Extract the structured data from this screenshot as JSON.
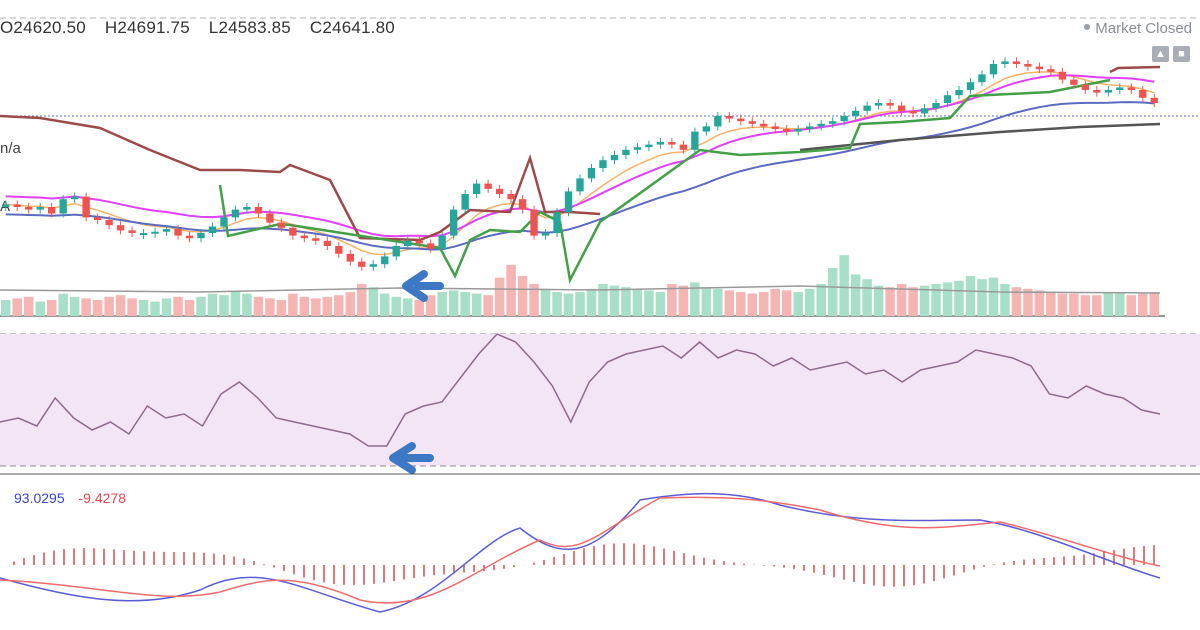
{
  "header": {
    "open": "O24620.50",
    "high": "H24691.75",
    "low": "L24583.85",
    "close": "C24641.80",
    "status": "Market Closed",
    "left_edge_text_1": "n/a",
    "left_edge_text_2": "A"
  },
  "macd_values": {
    "macd": "93.0295",
    "signal": "-9.4278"
  },
  "colors": {
    "up": "#26a69a",
    "down": "#ef5350",
    "ema_short": "#f7b267",
    "ema_mid": "#e040fb",
    "ema_blue": "#5c6bc0",
    "sma_long": "#555555",
    "supertrend_green": "#43a047",
    "supertrend_red": "#9c4a4a",
    "rsi_line": "#8e6b8e",
    "rsi_bg": "#f3e5f5",
    "macd_line": "#5b5bd6",
    "signal_line": "#ef6b6b",
    "arrow": "#3d78c4"
  },
  "chart_data": [
    {
      "type": "candlestick",
      "title": "",
      "ohlc": {
        "open": 24620.5,
        "high": 24691.75,
        "low": 24583.85,
        "close": 24641.8
      },
      "series": [
        {
          "kind": "candles",
          "close": [
            62,
            60,
            58,
            60,
            55,
            66,
            68,
            52,
            50,
            46,
            42,
            40,
            40,
            41,
            43,
            38,
            36,
            40,
            45,
            52,
            58,
            60,
            55,
            48,
            44,
            38,
            36,
            34,
            30,
            24,
            18,
            14,
            16,
            22,
            30,
            34,
            32,
            28,
            38,
            58,
            70,
            78,
            74,
            70,
            66,
            58,
            38,
            40,
            56,
            72,
            82,
            90,
            96,
            100,
            104,
            106,
            108,
            110,
            108,
            104,
            118,
            122,
            130,
            128,
            126,
            124,
            122,
            120,
            118,
            120,
            122,
            124,
            126,
            130,
            134,
            138,
            140,
            138,
            134,
            132,
            136,
            140,
            146,
            150,
            156,
            162,
            170,
            172,
            170,
            168,
            166,
            164,
            158,
            154,
            150,
            148,
            150,
            152,
            150,
            144,
            140
          ],
          "volume": [
            20,
            22,
            24,
            18,
            20,
            28,
            24,
            22,
            20,
            24,
            26,
            22,
            20,
            18,
            22,
            24,
            20,
            24,
            28,
            26,
            30,
            28,
            24,
            22,
            20,
            28,
            24,
            22,
            24,
            26,
            30,
            40,
            36,
            28,
            24,
            22,
            20,
            26,
            30,
            32,
            30,
            28,
            26,
            48,
            64,
            50,
            40,
            34,
            30,
            28,
            30,
            34,
            40,
            38,
            36,
            34,
            32,
            30,
            40,
            38,
            42,
            36,
            34,
            32,
            30,
            28,
            30,
            34,
            32,
            30,
            34,
            40,
            60,
            76,
            52,
            46,
            38,
            36,
            40,
            36,
            38,
            40,
            42,
            44,
            50,
            46,
            48,
            40,
            36,
            34,
            32,
            30,
            28,
            28,
            26,
            26,
            30,
            28,
            26,
            28,
            30
          ]
        }
      ]
    },
    {
      "type": "line",
      "title": "",
      "range": [
        0,
        100
      ],
      "series": [
        {
          "name": "",
          "values": [
            42,
            44,
            40,
            54,
            44,
            38,
            42,
            36,
            50,
            44,
            46,
            40,
            56,
            62,
            54,
            44,
            42,
            40,
            38,
            36,
            30,
            30,
            46,
            50,
            52,
            64,
            76,
            86,
            82,
            72,
            60,
            42,
            62,
            72,
            76,
            78,
            80,
            74,
            82,
            74,
            78,
            76,
            70,
            74,
            68,
            70,
            72,
            66,
            68,
            62,
            68,
            70,
            72,
            78,
            76,
            74,
            70,
            56,
            54,
            60,
            56,
            54,
            48,
            46
          ]
        }
      ]
    },
    {
      "type": "line",
      "title": "",
      "series": [
        {
          "name": "",
          "values": []
        },
        {
          "name": "",
          "values": []
        }
      ]
    }
  ]
}
